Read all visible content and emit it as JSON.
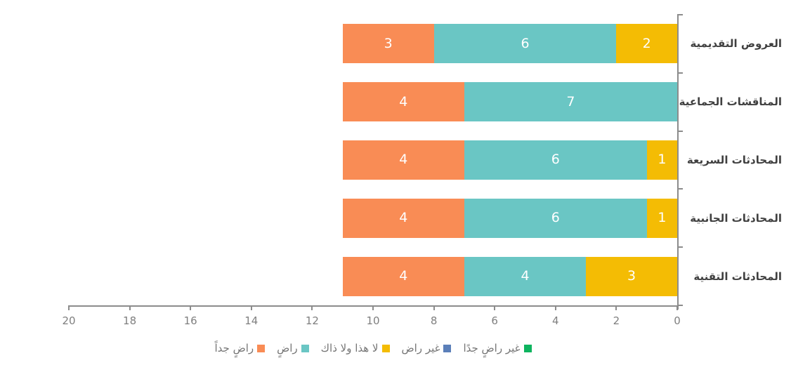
{
  "chart_data": {
    "type": "bar",
    "orientation": "horizontal",
    "stacked": true,
    "rtl": true,
    "title": "",
    "categories": [
      "العروض التقديمية",
      "المناقشات الجماعية",
      "المحادثات السريعة",
      "المحادثات الجانبية",
      "المحادثات التقنية"
    ],
    "series": [
      {
        "name": "راضٍ جداً",
        "color": "#F98C55",
        "values": [
          3,
          4,
          4,
          4,
          4
        ]
      },
      {
        "name": "راضٍ",
        "color": "#6AC6C4",
        "values": [
          6,
          7,
          6,
          6,
          4
        ]
      },
      {
        "name": "لا هذا ولا ذاك",
        "color": "#F4BC04",
        "values": [
          2,
          0,
          1,
          1,
          3
        ]
      },
      {
        "name": "غير راض",
        "color": "#5B7FB9",
        "values": [
          0,
          0,
          0,
          0,
          0
        ]
      },
      {
        "name": "غير راضٍ جدًا",
        "color": "#0EB45F",
        "values": [
          0,
          0,
          0,
          0,
          0
        ]
      }
    ],
    "x_axis": {
      "min": 0,
      "max": 20,
      "step": 2,
      "tick_labels": [
        "20",
        "18",
        "16",
        "14",
        "12",
        "10",
        "8",
        "6",
        "4",
        "2",
        "0"
      ],
      "zero_position": "right",
      "grid": false
    },
    "legend_position": "bottom",
    "axis_color": "#8C8C8C",
    "tick_label_color": "#7F7F7F",
    "category_label_color": "#404040",
    "bar_value_label_color": "#ffffff"
  }
}
